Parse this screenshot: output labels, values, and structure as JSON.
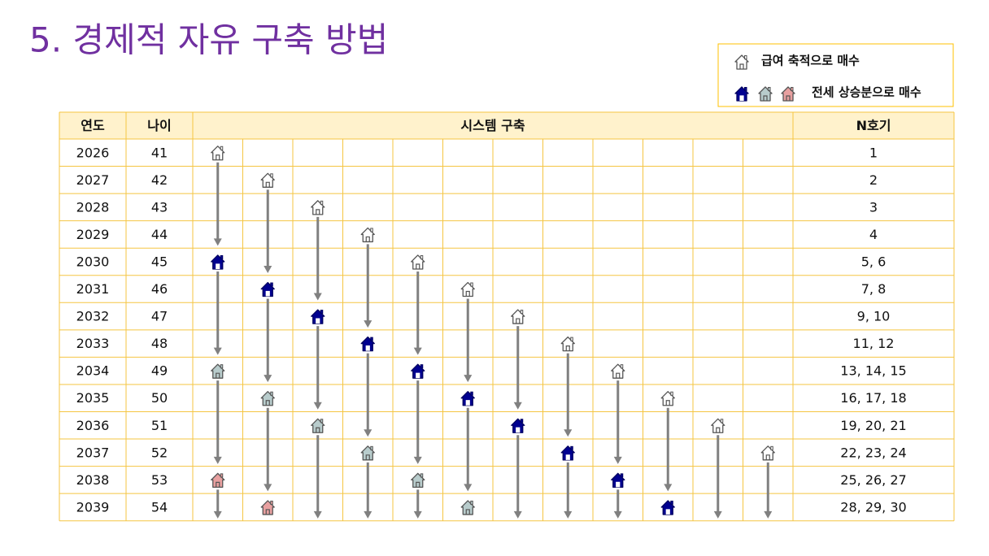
{
  "header": {
    "title": "5. 경제적 자유 구축 방법"
  },
  "legend": {
    "items": [
      "급여 축적으로 매수",
      "전세 상승분으로 매수"
    ]
  },
  "table": {
    "columns": [
      "연도",
      "나이",
      "시스템 구축",
      "N호기"
    ],
    "rows": [
      [
        "2026",
        "41",
        "1"
      ],
      [
        "2027",
        "42",
        "2"
      ],
      [
        "2028",
        "43",
        "3"
      ],
      [
        "2029",
        "44",
        "4"
      ],
      [
        "2030",
        "45",
        "5, 6"
      ],
      [
        "2031",
        "46",
        "7, 8"
      ],
      [
        "2032",
        "47",
        "9, 10"
      ],
      [
        "2033",
        "48",
        "11, 12"
      ],
      [
        "2034",
        "49",
        "13, 14, 15"
      ],
      [
        "2035",
        "50",
        "16, 17, 18"
      ],
      [
        "2036",
        "51",
        "19, 20, 21"
      ],
      [
        "2037",
        "52",
        "22, 23, 24"
      ],
      [
        "2038",
        "53",
        "25, 26, 27"
      ],
      [
        "2039",
        "54",
        "28, 29, 30"
      ]
    ]
  }
}
